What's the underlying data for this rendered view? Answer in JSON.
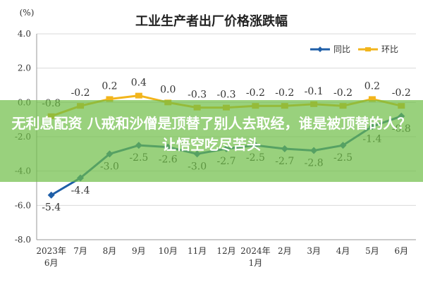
{
  "overlay": {
    "headline": "无利息配资 八戒和沙僧是顶替了别人去取经，谁是被顶替的人？让悟空吃尽苦头"
  },
  "chart_data": {
    "type": "line",
    "title": "工业生产者出厂价格涨跌幅",
    "unit_label": "(%)",
    "categories": [
      [
        "2023年",
        "6月"
      ],
      [
        "7月"
      ],
      [
        "8月"
      ],
      [
        "9月"
      ],
      [
        "10月"
      ],
      [
        "11月"
      ],
      [
        "12月"
      ],
      [
        "2024年",
        "1月"
      ],
      [
        "2月"
      ],
      [
        "3月"
      ],
      [
        "4月"
      ],
      [
        "5月"
      ],
      [
        "6月"
      ]
    ],
    "ylim": [
      -8.0,
      4.0
    ],
    "yticks": [
      "4.0",
      "2.0",
      "0.0",
      "-2.0",
      "-4.0",
      "-6.0",
      "-8.0"
    ],
    "grid": true,
    "legend_position": "top-right",
    "series": [
      {
        "name": "同比",
        "color": "#1f5fa8",
        "values": [
          -5.4,
          -4.4,
          -3.0,
          -2.5,
          -2.6,
          -3.0,
          -2.7,
          -2.5,
          -2.7,
          -2.8,
          -2.5,
          -1.4,
          -0.8
        ],
        "labels": [
          "-5.4",
          "-4.4",
          "-3.0",
          "-2.5",
          "-2.6",
          "-3.0",
          "-2.7",
          "-2.5",
          "-2.7",
          "-2.8",
          "-2.5",
          "-1.4",
          "-0.8"
        ]
      },
      {
        "name": "环比",
        "color": "#f2b51c",
        "values": [
          -0.8,
          -0.2,
          0.2,
          0.4,
          0.0,
          -0.3,
          -0.3,
          -0.2,
          -0.2,
          -0.1,
          -0.2,
          0.2,
          -0.2
        ],
        "labels": [
          "-0.8",
          "-0.2",
          "0.2",
          "0.4",
          "0.0",
          "-0.3",
          "-0.3",
          "-0.2",
          "-0.2",
          "-0.1",
          "-0.2",
          "0.2",
          "-0.2"
        ]
      }
    ]
  }
}
